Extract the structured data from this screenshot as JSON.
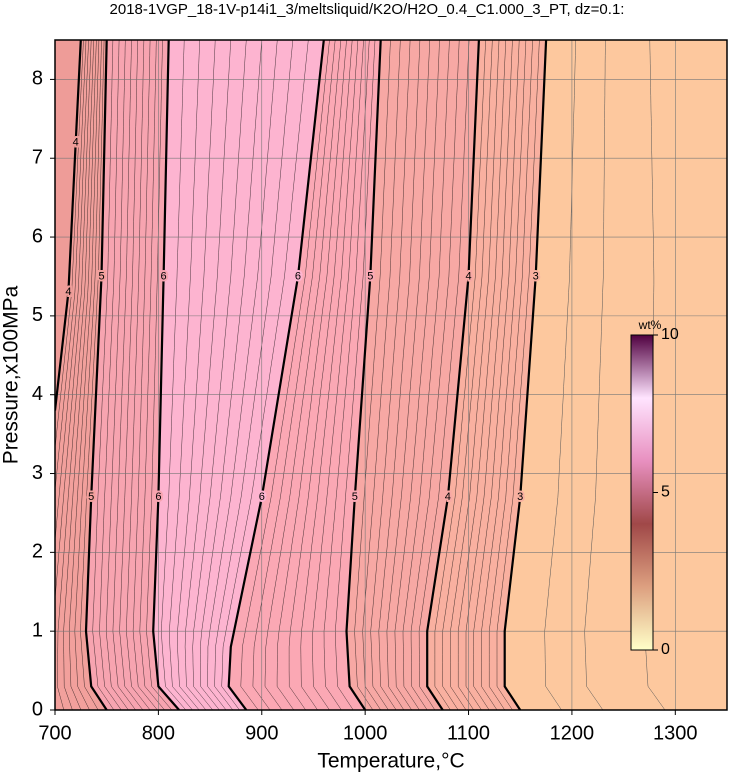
{
  "chart_data": {
    "type": "contour",
    "title": "2018-1VGP_18-1V-p14i1_3/meltsliquid/K2O/H2O_0.4_C1.000_3_PT, dz=0.1:",
    "xlabel": "Temperature,°C",
    "ylabel": "Pressure,x100MPa",
    "xlim": [
      700,
      1350
    ],
    "ylim": [
      0,
      8.5
    ],
    "xticks": [
      700,
      800,
      900,
      1000,
      1100,
      1200,
      1300
    ],
    "yticks": [
      0,
      1,
      2,
      3,
      4,
      5,
      6,
      7,
      8
    ],
    "grid": true,
    "background": "#fdc89e",
    "contours": [
      {
        "level": 3,
        "fill": "#f9b0a0",
        "x": [
          1175,
          1165,
          1150,
          1135,
          1135,
          1150
        ],
        "y": [
          8.5,
          5.5,
          2.7,
          1.0,
          0.3,
          0
        ]
      },
      {
        "level": 4,
        "fill": "#f7a8a4",
        "x": [
          1110,
          1100,
          1080,
          1060,
          1060,
          1075
        ],
        "y": [
          8.5,
          5.5,
          2.7,
          1.0,
          0.3,
          0
        ]
      },
      {
        "level": 5,
        "fill": "#fba8b4",
        "x": [
          1015,
          1005,
          990,
          982,
          985,
          1000
        ],
        "y": [
          8.5,
          5.5,
          2.7,
          1.0,
          0.3,
          0
        ]
      },
      {
        "level": 6,
        "fill": "#fdb4d0",
        "x": [
          960,
          935,
          900,
          870,
          868,
          885
        ],
        "y": [
          8.5,
          5.5,
          2.7,
          0.8,
          0.3,
          0
        ]
      },
      {
        "level": 6,
        "fill": "#f7a4b0",
        "x": [
          810,
          805,
          800,
          795,
          800,
          820
        ],
        "y": [
          8.5,
          5.5,
          2.7,
          1.0,
          0.3,
          0
        ]
      },
      {
        "level": 5,
        "fill": "#f2a09c",
        "x": [
          750,
          745,
          735,
          730,
          735,
          750
        ],
        "y": [
          8.5,
          5.5,
          2.7,
          1.0,
          0.3,
          0
        ]
      },
      {
        "level": 4,
        "fill": "#ee9c98",
        "x": [
          725,
          720,
          713,
          700
        ],
        "y": [
          8.5,
          7.2,
          5.3,
          3.8
        ]
      }
    ],
    "colorbar": {
      "label": "wt%",
      "lim": [
        0,
        10
      ],
      "ticks": [
        0,
        5,
        10
      ],
      "colors": [
        "#ffffc8",
        "#dda080",
        "#a04848",
        "#e890c0",
        "#ffe4ff",
        "#500040"
      ]
    }
  }
}
